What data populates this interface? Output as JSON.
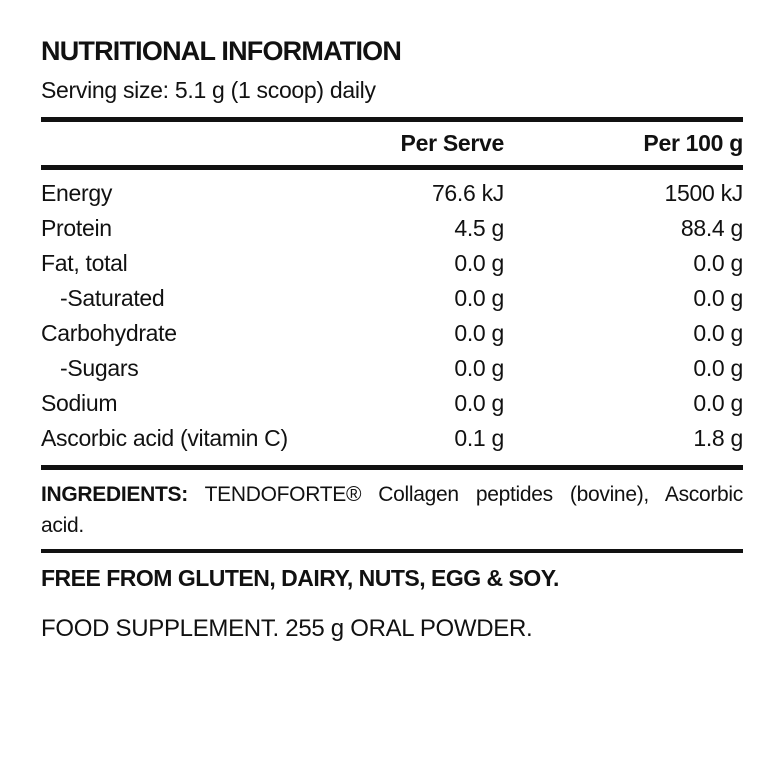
{
  "colors": {
    "text": "#111111",
    "background": "#ffffff",
    "rule": "#111111"
  },
  "header": {
    "title": "NUTRITIONAL INFORMATION",
    "serving_size": "Serving size: 5.1 g (1 scoop) daily"
  },
  "table": {
    "columns": {
      "per_serve": "Per Serve",
      "per_100g": "Per 100 g"
    },
    "rows": [
      {
        "label": "Energy",
        "per_serve": "76.6 kJ",
        "per_100g": "1500 kJ"
      },
      {
        "label": "Protein",
        "per_serve": "4.5 g",
        "per_100g": "88.4 g"
      },
      {
        "label": "Fat, total",
        "per_serve": "0.0 g",
        "per_100g": "0.0 g"
      },
      {
        "label": "-Saturated",
        "per_serve": "0.0 g",
        "per_100g": "0.0 g"
      },
      {
        "label": "Carbohydrate",
        "per_serve": "0.0 g",
        "per_100g": "0.0 g"
      },
      {
        "label": "-Sugars",
        "per_serve": "0.0 g",
        "per_100g": "0.0 g"
      },
      {
        "label": "Sodium",
        "per_serve": "0.0 g",
        "per_100g": "0.0 g"
      },
      {
        "label": "Ascorbic acid (vitamin C)",
        "per_serve": "0.1 g",
        "per_100g": "1.8 g"
      }
    ]
  },
  "ingredients": {
    "label": "INGREDIENTS:",
    "text": "TENDOFORTE® Collagen peptides (bovine), Ascorbic acid."
  },
  "free_from": "FREE FROM GLUTEN, DAIRY, NUTS, EGG & SOY.",
  "supplement": "FOOD SUPPLEMENT. 255 g ORAL POWDER."
}
